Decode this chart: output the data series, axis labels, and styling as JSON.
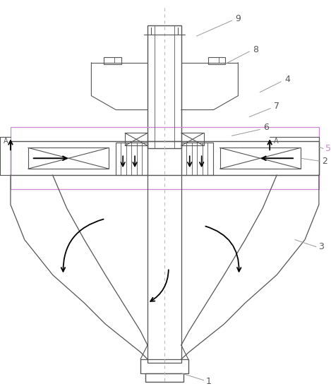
{
  "bg_color": "#ffffff",
  "lc": "#999999",
  "dc": "#555555",
  "mg": "#cc88cc",
  "figsize": [
    4.69,
    5.54
  ],
  "dpi": 100
}
